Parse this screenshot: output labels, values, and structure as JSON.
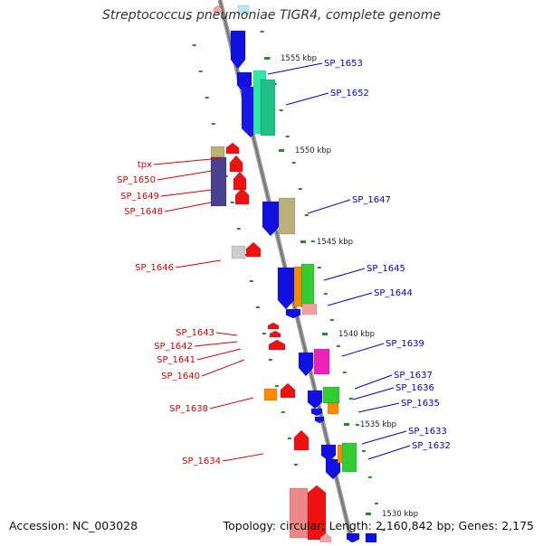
{
  "title": "Streptococcus pneumoniae TIGR4, complete genome",
  "footer": {
    "accession": "Accession: NC_003028",
    "summary": "Topology: circular; Length: 2,160,842 bp; Genes: 2,175"
  },
  "colors": {
    "backbone": "#8a8a8a",
    "tick": "#2a8a2a",
    "right_label": "#0000cc",
    "left_label": "#dd0000"
  },
  "scale_labels": [
    "1555 kbp",
    "1550 kbp",
    "1545 kbp",
    "1540 kbp",
    "1535 kbp",
    "1530 kbp"
  ],
  "right_genes": [
    "SP_1653",
    "SP_1652",
    "SP_1647",
    "SP_1645",
    "SP_1644",
    "SP_1639",
    "SP_1637",
    "SP_1636",
    "SP_1635",
    "SP_1633",
    "SP_1632"
  ],
  "left_genes": [
    "tpx",
    "SP_1650",
    "SP_1649",
    "SP_1648",
    "SP_1646",
    "SP_1643",
    "SP_1642",
    "SP_1641",
    "SP_1640",
    "SP_1638",
    "SP_1634"
  ]
}
